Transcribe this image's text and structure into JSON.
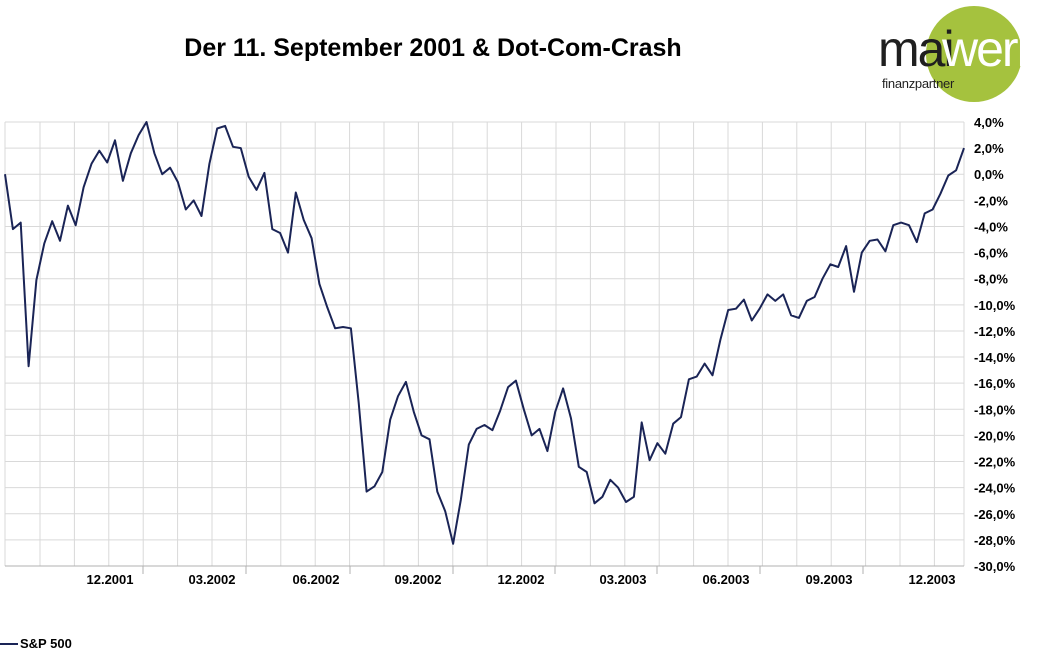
{
  "title": "Der 11. September 2001 & Dot-Com-Crash",
  "logo": {
    "brand_left": "mai",
    "brand_right": "werk",
    "subtitle": "finanzpartner"
  },
  "colors": {
    "line": "#1a2456",
    "grid": "#d9d9d9",
    "logo_green": "#a5c23e"
  },
  "chart_data": {
    "type": "line",
    "title": "Der 11. September 2001 & Dot-Com-Crash",
    "xlabel": "",
    "ylabel": "",
    "ylim": [
      -30,
      4
    ],
    "y_ticks": [
      "4,0%",
      "2,0%",
      "0,0%",
      "-2,0%",
      "-4,0%",
      "-6,0%",
      "-8,0%",
      "-10,0%",
      "-12,0%",
      "-14,0%",
      "-16,0%",
      "-18,0%",
      "-20,0%",
      "-22,0%",
      "-24,0%",
      "-26,0%",
      "-28,0%",
      "-30,0%"
    ],
    "x_ticks": [
      "12.2001",
      "03.2002",
      "06.2002",
      "09.2002",
      "12.2002",
      "03.2003",
      "06.2003",
      "09.2003",
      "12.2003"
    ],
    "grid": true,
    "legend_position": "bottom-left",
    "series": [
      {
        "name": "S&P 500",
        "values": [
          0.0,
          -4.2,
          -3.7,
          -14.7,
          -8.1,
          -5.3,
          -3.6,
          -5.1,
          -2.4,
          -3.9,
          -1.0,
          0.8,
          1.8,
          0.9,
          2.6,
          -0.5,
          1.6,
          3.0,
          4.0,
          1.6,
          0.0,
          0.5,
          -0.6,
          -2.7,
          -2.0,
          -3.2,
          0.8,
          3.5,
          3.7,
          2.1,
          2.0,
          -0.2,
          -1.2,
          0.1,
          -4.2,
          -4.5,
          -6.0,
          -1.4,
          -3.5,
          -4.9,
          -8.4,
          -10.2,
          -11.8,
          -11.7,
          -11.8,
          -17.5,
          -24.3,
          -23.9,
          -22.8,
          -18.8,
          -17.0,
          -15.9,
          -18.2,
          -20.0,
          -20.3,
          -24.3,
          -25.8,
          -28.3,
          -24.9,
          -20.7,
          -19.5,
          -19.2,
          -19.6,
          -18.1,
          -16.3,
          -15.8,
          -18.0,
          -20.0,
          -19.5,
          -21.2,
          -18.2,
          -16.4,
          -18.7,
          -22.4,
          -22.8,
          -25.2,
          -24.7,
          -23.4,
          -24.0,
          -25.1,
          -24.7,
          -19.0,
          -21.9,
          -20.6,
          -21.4,
          -19.1,
          -18.6,
          -15.7,
          -15.5,
          -14.5,
          -15.4,
          -12.7,
          -10.4,
          -10.3,
          -9.6,
          -11.2,
          -10.3,
          -9.2,
          -9.7,
          -9.2,
          -10.8,
          -11.0,
          -9.7,
          -9.4,
          -8.0,
          -6.9,
          -7.1,
          -5.5,
          -9.0,
          -6.0,
          -5.1,
          -5.0,
          -5.9,
          -3.9,
          -3.7,
          -3.9,
          -5.2,
          -3.0,
          -2.7,
          -1.5,
          -0.1,
          0.3,
          2.0
        ]
      }
    ]
  }
}
